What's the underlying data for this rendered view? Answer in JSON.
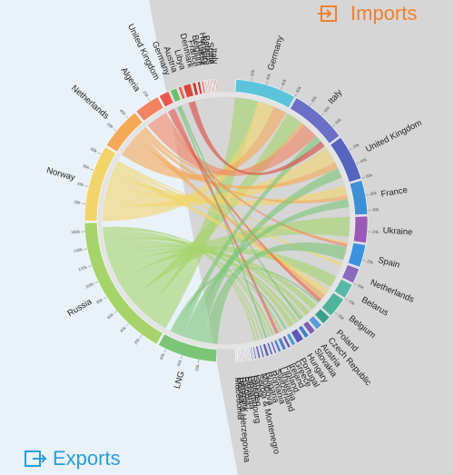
{
  "chart_data": {
    "type": "chord",
    "series": [
      {
        "name": "Exports",
        "categories": [
          "LNG",
          "Russia",
          "Norway",
          "Netherlands",
          "Algeria",
          "United Kingdom",
          "Germany",
          "Austria",
          "Libya",
          "Denmark",
          "France",
          "Belgium",
          "Turkey",
          "Hungary",
          "Belarus",
          "Spain",
          "Italy"
        ],
        "values": [
          70000,
          170000,
          90000,
          50000,
          30000,
          12000,
          8000,
          4000,
          9000,
          4000,
          3000,
          2000,
          1000,
          1000,
          1000,
          1000,
          1000
        ],
        "colors": [
          "#7cc576",
          "#a5d46a",
          "#f2d56a",
          "#f5a855",
          "#f28462",
          "#e85a4f",
          "#6cbf6c",
          "#e8604f",
          "#d9453c",
          "#cc3b33",
          "#c43a30",
          "#e85a4f",
          "#b83a2e",
          "#a8322a",
          "#d9453c",
          "#c43a30",
          "#a8322a"
        ]
      },
      {
        "name": "Imports",
        "categories": [
          "Germany",
          "Italy",
          "United Kingdom",
          "France",
          "Ukraine",
          "Spain",
          "Netherlands",
          "Belarus",
          "Belgium",
          "Poland",
          "Czech Republic",
          "Austria",
          "Slovakia",
          "Hungary",
          "Portugal",
          "Greece",
          "Ireland",
          "Finland",
          "Lithuania",
          "Switzerland",
          "Romania",
          "Bulgaria",
          "Moldova",
          "Serbia & Montenegro",
          "Latvia",
          "Sweden",
          "Luxembourg",
          "Slovenia",
          "Estonia",
          "Denmark",
          "Bosnia & Herzegovina",
          "Macedonia"
        ],
        "values": [
          80000,
          75000,
          60000,
          45000,
          35000,
          30000,
          20000,
          20000,
          27000,
          12000,
          9000,
          8000,
          6000,
          10000,
          5000,
          4000,
          5000,
          4000,
          3000,
          3000,
          4000,
          3000,
          3000,
          2000,
          1500,
          1000,
          1000,
          1000,
          1000,
          1000,
          500,
          300
        ],
        "colors": [
          "#5bc3dc",
          "#6b6fc6",
          "#5565be",
          "#3f8fd6",
          "#9b59b8",
          "#3b93e0",
          "#8a6abc",
          "#58b8a8",
          "#50b49c",
          "#3aa08a",
          "#5a9ad8",
          "#7a62b4",
          "#4a7ec8",
          "#5a5ab4",
          "#4a9ad0",
          "#6a5ab0",
          "#5a7ac0",
          "#4a88c8",
          "#7a68b8",
          "#4a70c0",
          "#6a60b4",
          "#5a80c4",
          "#7060b0",
          "#5a74c0",
          "#6a6aa8",
          "#707090",
          "#707090",
          "#707090",
          "#707090",
          "#707090",
          "#707090",
          "#707090"
        ]
      }
    ],
    "flows": [
      {
        "from": "Russia",
        "to": "Germany",
        "value": 35000
      },
      {
        "from": "Russia",
        "to": "Italy",
        "value": 25000
      },
      {
        "from": "Russia",
        "to": "Ukraine",
        "value": 30000
      },
      {
        "from": "Russia",
        "to": "Belarus",
        "value": 18000
      },
      {
        "from": "Russia",
        "to": "Poland",
        "value": 10000
      },
      {
        "from": "Russia",
        "to": "Czech Republic",
        "value": 8000
      },
      {
        "from": "Russia",
        "to": "Slovakia",
        "value": 6000
      },
      {
        "from": "Russia",
        "to": "Hungary",
        "value": 8000
      },
      {
        "from": "Russia",
        "to": "Austria",
        "value": 5000
      },
      {
        "from": "Russia",
        "to": "Finland",
        "value": 4000
      },
      {
        "from": "Russia",
        "to": "Lithuania",
        "value": 3000
      },
      {
        "from": "Russia",
        "to": "Romania",
        "value": 3000
      },
      {
        "from": "Russia",
        "to": "Bulgaria",
        "value": 3000
      },
      {
        "from": "Russia",
        "to": "Greece",
        "value": 3000
      },
      {
        "from": "Russia",
        "to": "Moldova",
        "value": 3000
      },
      {
        "from": "Norway",
        "to": "Germany",
        "value": 25000
      },
      {
        "from": "Norway",
        "to": "United Kingdom",
        "value": 25000
      },
      {
        "from": "Norway",
        "to": "France",
        "value": 15000
      },
      {
        "from": "Norway",
        "to": "Belgium",
        "value": 10000
      },
      {
        "from": "Norway",
        "to": "Netherlands",
        "value": 5000
      },
      {
        "from": "Norway",
        "to": "Spain",
        "value": 3000
      },
      {
        "from": "Netherlands",
        "to": "Germany",
        "value": 20000
      },
      {
        "from": "Netherlands",
        "to": "United Kingdom",
        "value": 10000
      },
      {
        "from": "Netherlands",
        "to": "Belgium",
        "value": 8000
      },
      {
        "from": "Netherlands",
        "to": "France",
        "value": 6000
      },
      {
        "from": "Netherlands",
        "to": "Italy",
        "value": 5000
      },
      {
        "from": "Algeria",
        "to": "Italy",
        "value": 25000
      },
      {
        "from": "Algeria",
        "to": "Spain",
        "value": 5000
      },
      {
        "from": "United Kingdom",
        "to": "Belgium",
        "value": 5000
      },
      {
        "from": "United Kingdom",
        "to": "Ireland",
        "value": 5000
      },
      {
        "from": "LNG",
        "to": "Spain",
        "value": 20000
      },
      {
        "from": "LNG",
        "to": "United Kingdom",
        "value": 15000
      },
      {
        "from": "LNG",
        "to": "France",
        "value": 12000
      },
      {
        "from": "LNG",
        "to": "Italy",
        "value": 10000
      },
      {
        "from": "LNG",
        "to": "Portugal",
        "value": 4000
      },
      {
        "from": "LNG",
        "to": "Belgium",
        "value": 3000
      },
      {
        "from": "LNG",
        "to": "Greece",
        "value": 1000
      },
      {
        "from": "Libya",
        "to": "Italy",
        "value": 9000
      },
      {
        "from": "Germany",
        "to": "Switzerland",
        "value": 3000
      },
      {
        "from": "Germany",
        "to": "Austria",
        "value": 3000
      }
    ],
    "ticks": [
      {
        "value": 20000,
        "label": "20k"
      },
      {
        "value": 40000,
        "label": "40k"
      },
      {
        "value": 60000,
        "label": "60k"
      },
      {
        "value": 80000,
        "label": "80k"
      },
      {
        "value": 100000,
        "label": "100k"
      },
      {
        "value": 120000,
        "label": "120k"
      },
      {
        "value": 140000,
        "label": "140k"
      },
      {
        "value": 160000,
        "label": "160k"
      }
    ]
  }
}
